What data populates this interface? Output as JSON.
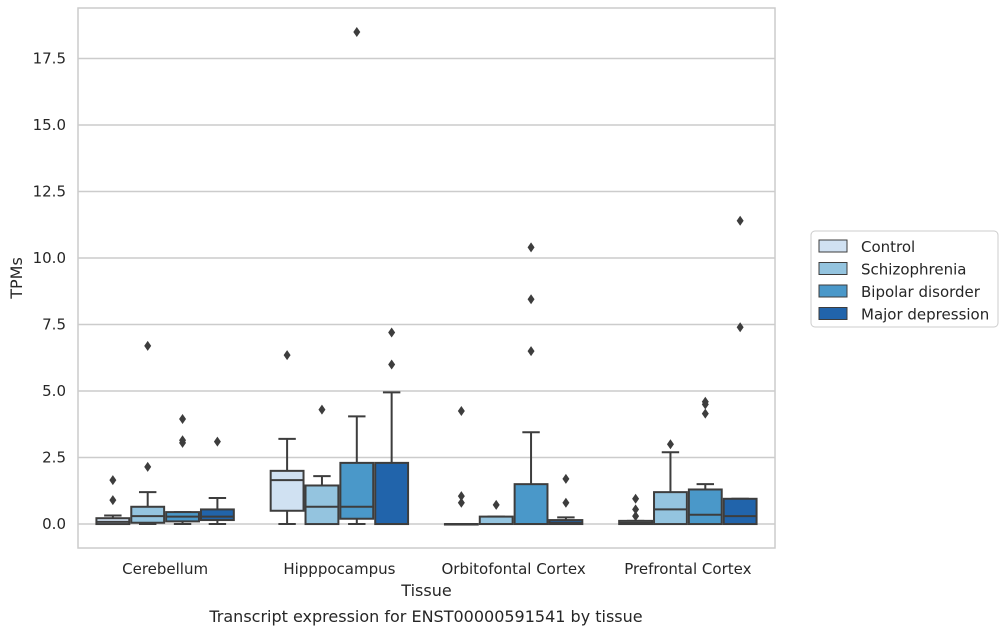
{
  "chart_data": {
    "type": "box",
    "title": "",
    "caption": "Transcript expression for ENST00000591541 by tissue",
    "xlabel": "Tissue",
    "ylabel": "TPMs",
    "ylim": [
      -0.9,
      19.4
    ],
    "yticks": [
      "0.0",
      "2.5",
      "5.0",
      "7.5",
      "10.0",
      "12.5",
      "15.0",
      "17.5"
    ],
    "grid": true,
    "legend_position": "right",
    "categories": [
      "Cerebellum",
      "Hipppocampus",
      "Orbitofontal Cortex",
      "Prefrontal Cortex"
    ],
    "series": [
      {
        "name": "Control",
        "color": "#d0e1f2",
        "boxes": [
          {
            "whisker_low": 0.0,
            "q1": 0.0,
            "median": 0.08,
            "q3": 0.22,
            "whisker_high": 0.32,
            "outliers": [
              0.9,
              1.65
            ]
          },
          {
            "whisker_low": 0.0,
            "q1": 0.5,
            "median": 1.65,
            "q3": 2.0,
            "whisker_high": 3.2,
            "outliers": [
              6.35
            ]
          },
          {
            "whisker_low": 0.0,
            "q1": 0.0,
            "median": 0.0,
            "q3": 0.0,
            "whisker_high": 0.0,
            "outliers": [
              0.8,
              1.05,
              4.25
            ]
          },
          {
            "whisker_low": 0.0,
            "q1": 0.0,
            "median": 0.05,
            "q3": 0.12,
            "whisker_high": 0.12,
            "outliers": [
              0.3,
              0.55,
              0.95
            ]
          }
        ]
      },
      {
        "name": "Schizophrenia",
        "color": "#94c4df",
        "boxes": [
          {
            "whisker_low": 0.0,
            "q1": 0.05,
            "median": 0.3,
            "q3": 0.65,
            "whisker_high": 1.2,
            "outliers": [
              2.15,
              6.7
            ]
          },
          {
            "whisker_low": 0.0,
            "q1": 0.0,
            "median": 0.65,
            "q3": 1.45,
            "whisker_high": 1.8,
            "outliers": [
              4.3
            ]
          },
          {
            "whisker_low": 0.0,
            "q1": 0.0,
            "median": 0.0,
            "q3": 0.28,
            "whisker_high": 0.28,
            "outliers": [
              0.72
            ]
          },
          {
            "whisker_low": 0.0,
            "q1": 0.0,
            "median": 0.55,
            "q3": 1.2,
            "whisker_high": 2.7,
            "outliers": [
              3.0
            ]
          }
        ]
      },
      {
        "name": "Bipolar disorder",
        "color": "#4a98c9",
        "boxes": [
          {
            "whisker_low": 0.0,
            "q1": 0.1,
            "median": 0.28,
            "q3": 0.45,
            "whisker_high": 0.45,
            "outliers": [
              3.05,
              3.15,
              3.95
            ]
          },
          {
            "whisker_low": 0.0,
            "q1": 0.2,
            "median": 0.65,
            "q3": 2.3,
            "whisker_high": 4.05,
            "outliers": [
              18.5
            ]
          },
          {
            "whisker_low": 0.0,
            "q1": 0.0,
            "median": 0.0,
            "q3": 1.5,
            "whisker_high": 3.45,
            "outliers": [
              6.5,
              8.45,
              10.4
            ]
          },
          {
            "whisker_low": 0.0,
            "q1": 0.0,
            "median": 0.35,
            "q3": 1.3,
            "whisker_high": 1.5,
            "outliers": [
              4.15,
              4.5,
              4.6
            ]
          }
        ]
      },
      {
        "name": "Major depression",
        "color": "#2164ab",
        "boxes": [
          {
            "whisker_low": 0.0,
            "q1": 0.15,
            "median": 0.28,
            "q3": 0.55,
            "whisker_high": 0.98,
            "outliers": [
              3.1
            ]
          },
          {
            "whisker_low": 0.0,
            "q1": 0.0,
            "median": 0.0,
            "q3": 2.3,
            "whisker_high": 4.95,
            "outliers": [
              6.0,
              7.2
            ]
          },
          {
            "whisker_low": 0.0,
            "q1": 0.0,
            "median": 0.05,
            "q3": 0.15,
            "whisker_high": 0.25,
            "outliers": [
              0.8,
              1.7
            ]
          },
          {
            "whisker_low": 0.0,
            "q1": 0.0,
            "median": 0.3,
            "q3": 0.95,
            "whisker_high": 0.95,
            "outliers": [
              7.4,
              11.4
            ]
          }
        ]
      }
    ]
  }
}
